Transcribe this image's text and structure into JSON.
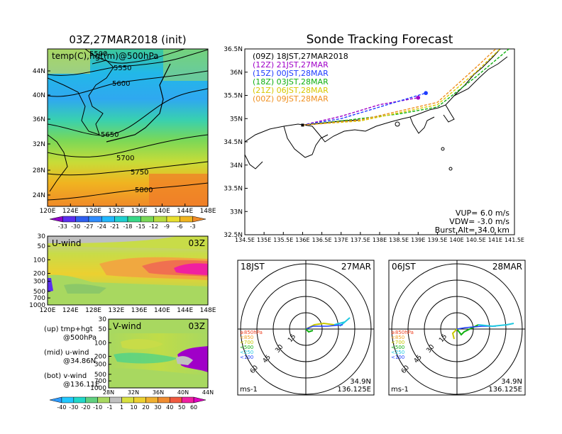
{
  "map500": {
    "title": "03Z,27MAR2018 (init)",
    "label": "temp(C),hgt(m)@500hPa",
    "lat_ticks": [
      "44N",
      "40N",
      "36N",
      "32N",
      "28N",
      "24N"
    ],
    "lon_ticks": [
      "120E",
      "124E",
      "128E",
      "132E",
      "136E",
      "140E",
      "144E",
      "148E"
    ],
    "contour_labels": [
      "5500",
      "5550",
      "5600",
      "5650",
      "5700",
      "5750",
      "5800"
    ],
    "colorbar_labels": [
      "-33",
      "-30",
      "-27",
      "-24",
      "-21",
      "-18",
      "-15",
      "-12",
      "-9",
      "-6",
      "-3"
    ],
    "colorbar_colors": [
      "#9000c8",
      "#5a2ff0",
      "#2f5ff0",
      "#2f8cff",
      "#22b8ff",
      "#20d0d0",
      "#38d888",
      "#7ad858",
      "#b8dc40",
      "#e8e030",
      "#f0b420",
      "#f08a28"
    ]
  },
  "uwind": {
    "label": "U-wind",
    "time": "03Z",
    "y_ticks": [
      "30",
      "50",
      "100",
      "200",
      "300",
      "500",
      "700",
      "1000"
    ],
    "x_ticks": [
      "120E",
      "124E",
      "128E",
      "132E",
      "136E",
      "140E",
      "144E",
      "148E"
    ]
  },
  "vwind": {
    "label": "V-wind",
    "time": "03Z",
    "y_ticks": [
      "30",
      "50",
      "100",
      "200",
      "300",
      "500",
      "700",
      "1000"
    ],
    "x_ticks": [
      "28N",
      "32N",
      "36N",
      "40N",
      "44N"
    ]
  },
  "captions": {
    "up": [
      "(up) tmp+hgt",
      "@500hPa"
    ],
    "mid": [
      "(mid) u-wind",
      "@34.86N"
    ],
    "bot": [
      "(bot) v-wind",
      "@136.11E"
    ]
  },
  "wind_colorbar": {
    "labels": [
      "-40",
      "-30",
      "-20",
      "-10",
      "-1",
      "1",
      "10",
      "20",
      "30",
      "40",
      "50",
      "60"
    ],
    "colors": [
      "#2f9cff",
      "#22c8ff",
      "#20d8c8",
      "#60d080",
      "#a8d860",
      "#c0c0c0",
      "#d8e040",
      "#ecd030",
      "#f0b030",
      "#f08c30",
      "#f05a40",
      "#f020a0",
      "#e000c0"
    ]
  },
  "track": {
    "title": "Sonde Tracking Forecast",
    "legend": [
      {
        "text": "(09Z)  18JST,27MAR2018",
        "color": "#000000"
      },
      {
        "text": "(12Z)  21JST,27MAR",
        "color": "#a000c8"
      },
      {
        "text": "(15Z)  00JST,28MAR",
        "color": "#1e3cff"
      },
      {
        "text": "(18Z)  03JST,28MAR",
        "color": "#10b010"
      },
      {
        "text": "(21Z)  06JST,28MAR",
        "color": "#d8c800"
      },
      {
        "text": "(00Z)  09JST,28MAR",
        "color": "#f09020"
      }
    ],
    "params": [
      "VUP=  6.0 m/s",
      "VDW= -3.0 m/s",
      "Burst Alt=  34.0 km"
    ],
    "lat_ticks": [
      "36.5N",
      "36N",
      "35.5N",
      "35N",
      "34.5N",
      "34N",
      "33.5N",
      "33N",
      "32.5N"
    ],
    "lon_ticks": [
      "134.5E",
      "135E",
      "135.5E",
      "136E",
      "136.5E",
      "137E",
      "137.5E",
      "138E",
      "138.5E",
      "139E",
      "139.5E",
      "140E",
      "140.5E",
      "141E",
      "141.5E"
    ]
  },
  "polar_left": {
    "time": "18JST",
    "date": "27MAR",
    "lat": "34.9N",
    "lon": "136.125E",
    "unit": "ms-1",
    "rings": [
      "15",
      "30",
      "45",
      "60"
    ],
    "levels": [
      {
        "text": "≥850hPa",
        "color": "#f04020"
      },
      {
        "text": "<850",
        "color": "#f0a020"
      },
      {
        "text": "<700",
        "color": "#c8c800"
      },
      {
        "text": "<500",
        "color": "#10b010"
      },
      {
        "text": "<250",
        "color": "#20c8e0"
      },
      {
        "text": "<100",
        "color": "#2040ff"
      }
    ]
  },
  "polar_right": {
    "time": "06JST",
    "date": "28MAR",
    "lat": "34.9N",
    "lon": "136.125E",
    "unit": "ms-1",
    "rings": [
      "15",
      "30",
      "45",
      "60"
    ],
    "levels": [
      {
        "text": "≥850hPa",
        "color": "#f04020"
      },
      {
        "text": "<850",
        "color": "#f0a020"
      },
      {
        "text": "<700",
        "color": "#c8c800"
      },
      {
        "text": "<500",
        "color": "#10b010"
      },
      {
        "text": "<250",
        "color": "#20c8e0"
      },
      {
        "text": "<100",
        "color": "#2040ff"
      }
    ]
  },
  "chart_data": [
    {
      "type": "heatmap",
      "title": "03Z,27MAR2018 (init)",
      "subtitle": "temp(C),hgt(m)@500hPa",
      "x_range": [
        "120E",
        "148E"
      ],
      "y_range": [
        "24N",
        "44N"
      ],
      "contours": [
        5500,
        5550,
        5600,
        5650,
        5700,
        5750,
        5800
      ]
    },
    {
      "type": "heatmap",
      "title": "U-wind",
      "subtitle": "03Z"
    },
    {
      "type": "heatmap",
      "title": "V-wind",
      "subtitle": "03Z"
    },
    {
      "type": "line",
      "title": "Sonde Tracking Forecast",
      "xlim": [
        134.5,
        141.5
      ],
      "ylim": [
        32.5,
        36.5
      ],
      "series": [
        {
          "name": "(09Z)  18JST,27MAR2018",
          "x": [
            136.0,
            136.5,
            137.0,
            137.5
          ],
          "y": [
            34.86,
            34.9,
            34.95,
            34.97
          ]
        },
        {
          "name": "(12Z)  21JST,27MAR",
          "x": [
            136.0,
            137.0,
            138.0,
            139.0
          ],
          "y": [
            34.86,
            35.05,
            35.3,
            35.45
          ]
        },
        {
          "name": "(15Z)  00JST,28MAR",
          "x": [
            136.0,
            137.0,
            138.0,
            139.2
          ],
          "y": [
            34.86,
            35.0,
            35.25,
            35.55
          ]
        },
        {
          "name": "(18Z)  03JST,28MAR",
          "x": [
            136.0,
            137.0,
            138.5,
            139.5,
            140.5,
            141.5
          ],
          "y": [
            34.86,
            34.95,
            35.1,
            35.25,
            35.9,
            36.6
          ]
        },
        {
          "name": "(21Z)  06JST,28MAR",
          "x": [
            136.0,
            137.5,
            139.5,
            140.5,
            141.5
          ],
          "y": [
            34.86,
            34.95,
            35.3,
            36.0,
            36.8
          ]
        },
        {
          "name": "(00Z)  09JST,28MAR",
          "x": [
            136.0,
            137.5,
            139.5,
            140.5,
            141.4
          ],
          "y": [
            34.86,
            34.97,
            35.35,
            36.1,
            36.8
          ]
        }
      ]
    }
  ]
}
